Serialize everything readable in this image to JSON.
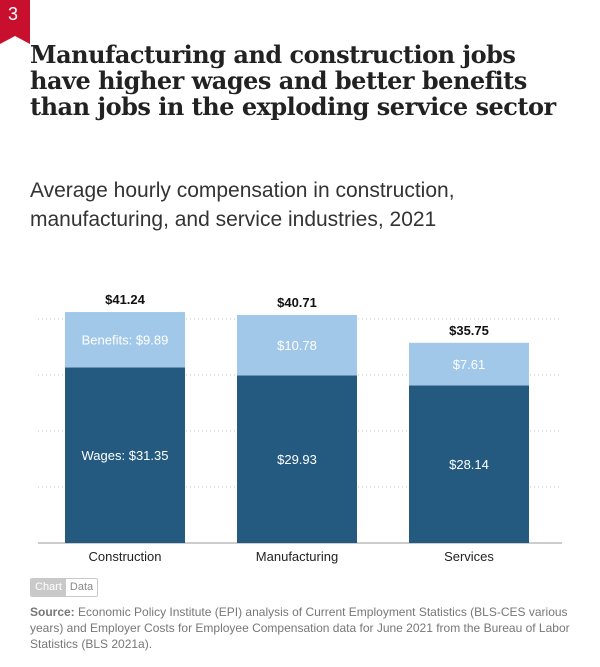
{
  "figure_number": "3",
  "colors": {
    "badge": "#c8102e",
    "wages": "#245a80",
    "benefits": "#a2c8e9"
  },
  "title": "Manufacturing and construction jobs have higher wages and better benefits than jobs in the exploding service sector",
  "subtitle": "Average hourly compensation in construction, manufacturing, and service industries, 2021",
  "chart_data": {
    "type": "bar",
    "stacked": true,
    "categories": [
      "Construction",
      "Manufacturing",
      "Services"
    ],
    "series": [
      {
        "name": "Wages",
        "values": [
          31.35,
          29.93,
          28.14
        ],
        "labels": [
          "Wages: $31.35",
          "$29.93",
          "$28.14"
        ]
      },
      {
        "name": "Benefits",
        "values": [
          9.89,
          10.78,
          7.61
        ],
        "labels": [
          "Benefits: $9.89",
          "$10.78",
          "$7.61"
        ]
      }
    ],
    "totals": [
      41.24,
      40.71,
      35.75
    ],
    "total_labels": [
      "$41.24",
      "$40.71",
      "$35.75"
    ],
    "ylim": [
      0,
      45
    ],
    "grid": true
  },
  "toggle": {
    "chart_label": "Chart",
    "data_label": "Data"
  },
  "source": {
    "label": "Source:",
    "text": "Economic Policy Institute (EPI) analysis of Current Employment Statistics (BLS-CES various years) and Employer Costs for Employee Compensation data for June 2021 from the Bureau of Labor Statistics (BLS 2021a)."
  }
}
